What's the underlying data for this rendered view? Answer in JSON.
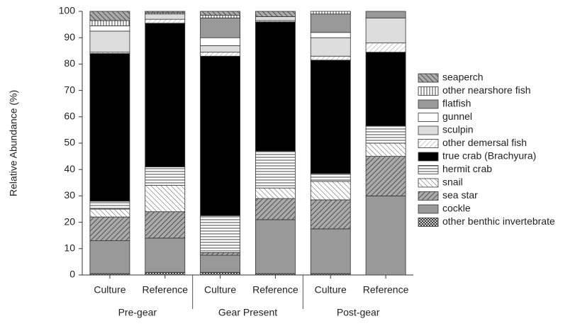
{
  "chart_data": {
    "type": "stacked-bar",
    "y_label": "Relative Abundance (%)",
    "categories": [
      "Culture",
      "Reference",
      "Culture",
      "Reference",
      "Culture",
      "Reference"
    ],
    "groups": [
      "Pre-gear",
      "Gear Present",
      "Post-gear"
    ],
    "ylim": [
      0,
      100
    ],
    "yticks": [
      0,
      10,
      20,
      30,
      40,
      50,
      60,
      70,
      80,
      90,
      100
    ],
    "series": [
      {
        "name": "other benthic invertebrate",
        "color": "#888888",
        "pattern": "crosshatch",
        "values": [
          0.5,
          1,
          1,
          0.5,
          0.5,
          0
        ]
      },
      {
        "name": "cockle",
        "color": "#999999",
        "pattern": "solid",
        "values": [
          12.5,
          13,
          6.5,
          20.5,
          17,
          30
        ]
      },
      {
        "name": "sea star",
        "color": "#555555",
        "pattern": "hatch-dense",
        "values": [
          9,
          10,
          1,
          8,
          11,
          15
        ]
      },
      {
        "name": "snail",
        "color": "#666666",
        "pattern": "hatch-back",
        "values": [
          3,
          10,
          0,
          4,
          7,
          5
        ]
      },
      {
        "name": "hermit crab",
        "color": "#444444",
        "pattern": "horizontal",
        "values": [
          3,
          7,
          14,
          14,
          3,
          6.5
        ]
      },
      {
        "name": "true crab (Brachyura)",
        "color": "#000000",
        "pattern": "solid",
        "values": [
          56,
          54.5,
          60.5,
          49,
          43,
          28
        ]
      },
      {
        "name": "other demersal fish",
        "color": "#888888",
        "pattern": "hatch-light",
        "values": [
          0.5,
          1.5,
          1.5,
          0.5,
          1.5,
          3.5
        ]
      },
      {
        "name": "sculpin",
        "color": "#dddddd",
        "pattern": "solid",
        "values": [
          8,
          2,
          2.5,
          1.5,
          7,
          9.5
        ]
      },
      {
        "name": "gunnel",
        "color": "#ffffff",
        "pattern": "solid",
        "values": [
          2,
          0,
          3,
          0,
          2,
          0
        ]
      },
      {
        "name": "flatfish",
        "color": "#999999",
        "pattern": "solid",
        "values": [
          0,
          0,
          7.5,
          0,
          7,
          2.5
        ]
      },
      {
        "name": "other nearshore fish",
        "color": "#444444",
        "pattern": "vertical",
        "values": [
          2,
          0.5,
          1,
          0,
          1,
          0
        ]
      },
      {
        "name": "seaperch",
        "color": "#555555",
        "pattern": "hatch-gray",
        "values": [
          3.5,
          0.5,
          1.5,
          2,
          0,
          0
        ]
      }
    ]
  }
}
